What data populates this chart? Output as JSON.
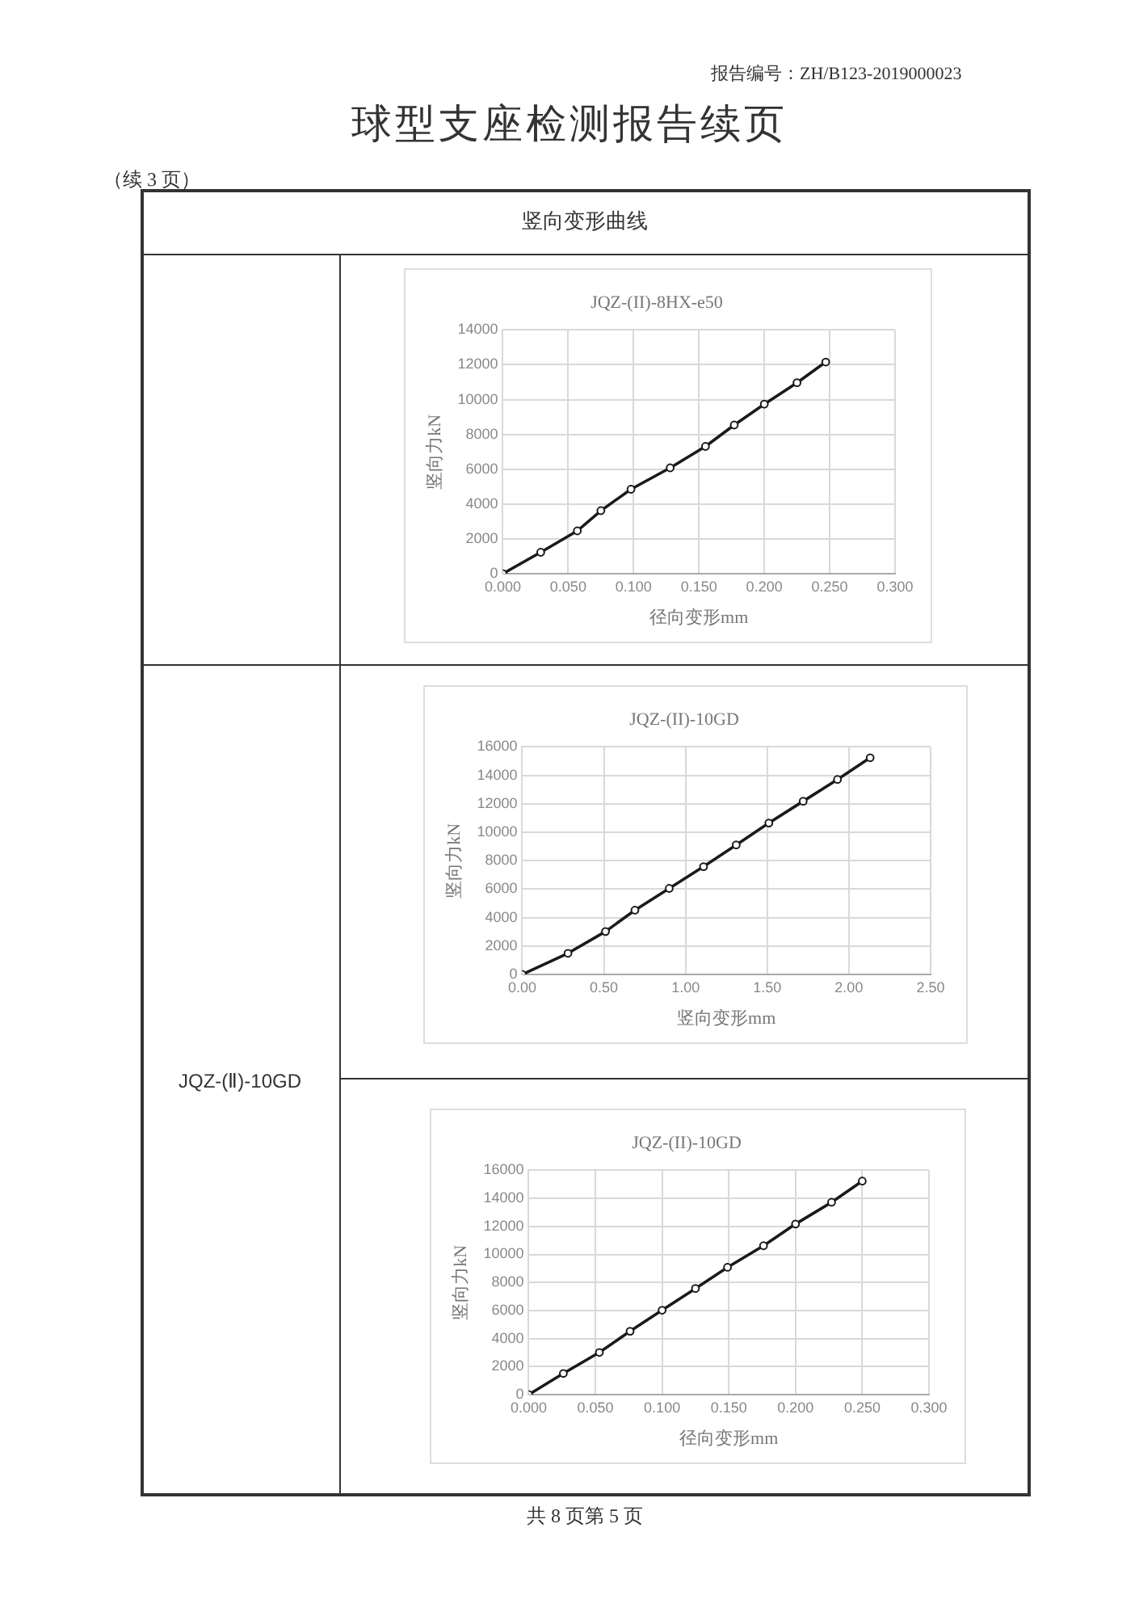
{
  "chart_data": [
    {
      "type": "other",
      "title": "球型支座检测报告续页",
      "annotations": [
        "报告编号：ZH/B123-2019000023",
        "（续 3 页）",
        "竖向变形曲线",
        "JQZ-(Ⅱ)-10GD",
        "共 8 页第 5 页"
      ]
    },
    {
      "type": "line",
      "title": "JQZ-(II)-8HX-e50",
      "xlabel": "径向变形mm",
      "ylabel": "竖向力kN",
      "marker": "circle",
      "grid": true,
      "legend": false,
      "series": [
        {
          "color": "#1a1a1a",
          "x": [
            0,
            0.029,
            0.057,
            0.075,
            0.098,
            0.128,
            0.155,
            0.177,
            0.2,
            0.225,
            0.247
          ],
          "values": [
            0,
            1230,
            2460,
            3620,
            4850,
            6080,
            7310,
            8540,
            9740,
            10970,
            12160
          ]
        }
      ],
      "xlim": [
        0,
        0.3
      ],
      "xticks": [
        {
          "value": 0,
          "label": "0.000"
        },
        {
          "value": 0.05,
          "label": "0.050"
        },
        {
          "value": 0.1,
          "label": "0.100"
        },
        {
          "value": 0.15,
          "label": "0.150"
        },
        {
          "value": 0.2,
          "label": "0.200"
        },
        {
          "value": 0.25,
          "label": "0.250"
        },
        {
          "value": 0.3,
          "label": "0.300"
        }
      ],
      "ylim": [
        0,
        14000
      ],
      "yticks": [
        0,
        2000,
        4000,
        6000,
        8000,
        10000,
        12000,
        14000
      ]
    },
    {
      "type": "line",
      "title": "JQZ-(II)-10GD",
      "xlabel": "竖向变形mm",
      "ylabel": "竖向力kN",
      "marker": "circle",
      "grid": true,
      "legend": false,
      "series": [
        {
          "color": "#1a1a1a",
          "x": [
            0.0,
            0.28,
            0.51,
            0.69,
            0.9,
            1.11,
            1.31,
            1.51,
            1.72,
            1.93,
            2.13
          ],
          "values": [
            0,
            1490,
            3020,
            4520,
            6050,
            7580,
            9110,
            10650,
            12180,
            13710,
            15240
          ]
        }
      ],
      "xlim": [
        0,
        2.5
      ],
      "xticks": [
        {
          "value": 0,
          "label": "0.00"
        },
        {
          "value": 0.5,
          "label": "0.50"
        },
        {
          "value": 1,
          "label": "1.00"
        },
        {
          "value": 1.5,
          "label": "1.50"
        },
        {
          "value": 2,
          "label": "2.00"
        },
        {
          "value": 2.5,
          "label": "2.50"
        }
      ],
      "ylim": [
        0,
        16000
      ],
      "yticks": [
        0,
        2000,
        4000,
        6000,
        8000,
        10000,
        12000,
        14000,
        16000
      ]
    },
    {
      "type": "line",
      "title": "JQZ-(II)-10GD",
      "xlabel": "径向变形mm",
      "ylabel": "竖向力kN",
      "marker": "circle",
      "grid": true,
      "legend": false,
      "series": [
        {
          "color": "#1a1a1a",
          "x": [
            0,
            0.026,
            0.053,
            0.076,
            0.1,
            0.125,
            0.149,
            0.176,
            0.2,
            0.227,
            0.25
          ],
          "values": [
            0,
            1510,
            3010,
            4520,
            6020,
            7570,
            9080,
            10620,
            12170,
            13720,
            15230
          ]
        }
      ],
      "xlim": [
        0,
        0.3
      ],
      "xticks": [
        {
          "value": 0,
          "label": "0.000"
        },
        {
          "value": 0.05,
          "label": "0.050"
        },
        {
          "value": 0.1,
          "label": "0.100"
        },
        {
          "value": 0.15,
          "label": "0.150"
        },
        {
          "value": 0.2,
          "label": "0.200"
        },
        {
          "value": 0.25,
          "label": "0.250"
        },
        {
          "value": 0.3,
          "label": "0.300"
        }
      ],
      "ylim": [
        0,
        16000
      ],
      "yticks": [
        0,
        2000,
        4000,
        6000,
        8000,
        10000,
        12000,
        14000,
        16000
      ]
    }
  ]
}
